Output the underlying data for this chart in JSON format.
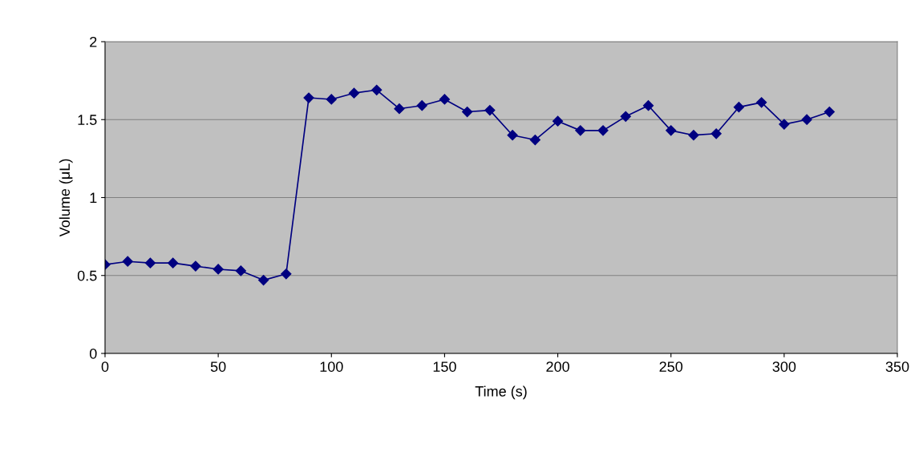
{
  "chart_data": {
    "type": "line",
    "xlabel": "Time (s)",
    "ylabel": "Volume (μL)",
    "x": [
      0,
      10,
      20,
      30,
      40,
      50,
      60,
      70,
      80,
      90,
      100,
      110,
      120,
      130,
      140,
      150,
      160,
      170,
      180,
      190,
      200,
      210,
      220,
      230,
      240,
      250,
      260,
      270,
      280,
      290,
      300,
      310,
      320
    ],
    "series": [
      {
        "color": "#000080",
        "values": [
          0.57,
          0.59,
          0.58,
          0.58,
          0.56,
          0.54,
          0.53,
          0.47,
          0.51,
          1.64,
          1.63,
          1.67,
          1.69,
          1.57,
          1.59,
          1.63,
          1.55,
          1.56,
          1.4,
          1.37,
          1.49,
          1.43,
          1.43,
          1.52,
          1.59,
          1.43,
          1.4,
          1.41,
          1.58,
          1.61,
          1.47,
          1.5,
          1.55
        ]
      }
    ],
    "xlim": [
      0,
      350
    ],
    "xticks": [
      0,
      50,
      100,
      150,
      200,
      250,
      300,
      350
    ],
    "ylim": [
      0,
      2
    ],
    "yticks": [
      0,
      0.5,
      1,
      1.5,
      2
    ],
    "grid": "y",
    "marker": "diamond",
    "line_style": "solid"
  }
}
